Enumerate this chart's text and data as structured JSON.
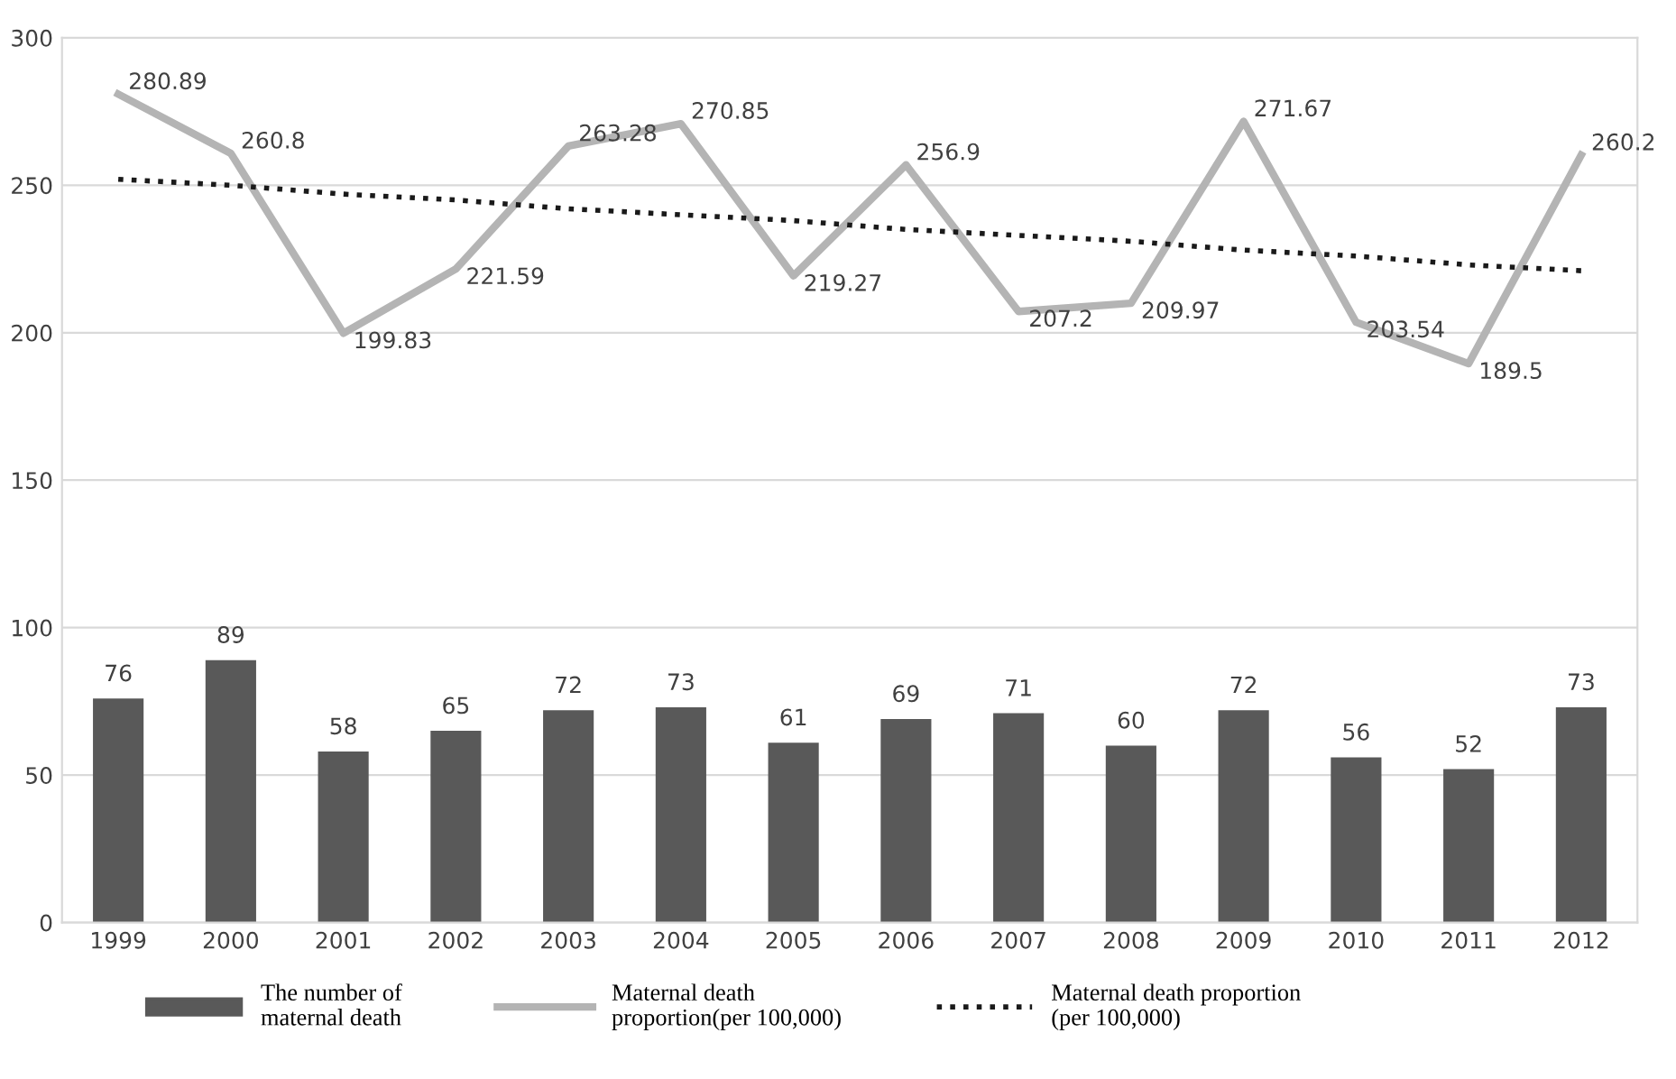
{
  "chart_data": {
    "type": "bar",
    "categories": [
      "1999",
      "2000",
      "2001",
      "2002",
      "2003",
      "2004",
      "2005",
      "2006",
      "2007",
      "2008",
      "2009",
      "2010",
      "2011",
      "2012"
    ],
    "series": [
      {
        "name": "The number of\nmaternal death",
        "color": "#595959",
        "values": [
          76,
          89,
          58,
          65,
          72,
          73,
          61,
          69,
          71,
          60,
          72,
          56,
          52,
          73
        ],
        "value_labels": [
          "76",
          "89",
          "58",
          "65",
          "72",
          "73",
          "61",
          "69",
          "71",
          "60",
          "72",
          "56",
          "52",
          "73"
        ]
      },
      {
        "name": "Maternal death\nproportion(per 100,000)",
        "type": "line",
        "color": "#b4b4b4",
        "line_style": "solid",
        "values": [
          280.89,
          260.8,
          199.83,
          221.59,
          263.28,
          270.85,
          219.27,
          256.9,
          207.2,
          209.97,
          271.67,
          203.54,
          189.5,
          260.2
        ],
        "value_labels": [
          "280.89",
          "260.8",
          "199.83",
          "221.59",
          "263.28",
          "270.85",
          "219.27",
          "256.9",
          "207.2",
          "209.97",
          "271.67",
          "203.54",
          "189.5",
          "260.2"
        ]
      },
      {
        "name": "Maternal death proportion\n(per 100,000)",
        "type": "line",
        "color": "#1a1a1a",
        "line_style": "dotted",
        "values": [
          252,
          250,
          247,
          245,
          242,
          240,
          238,
          235,
          233,
          231,
          228,
          226,
          223,
          221
        ]
      }
    ],
    "ylim": [
      0,
      300
    ],
    "yticks": [
      0,
      50,
      100,
      150,
      200,
      250,
      300
    ],
    "grid": "y",
    "legend": "bottom"
  }
}
